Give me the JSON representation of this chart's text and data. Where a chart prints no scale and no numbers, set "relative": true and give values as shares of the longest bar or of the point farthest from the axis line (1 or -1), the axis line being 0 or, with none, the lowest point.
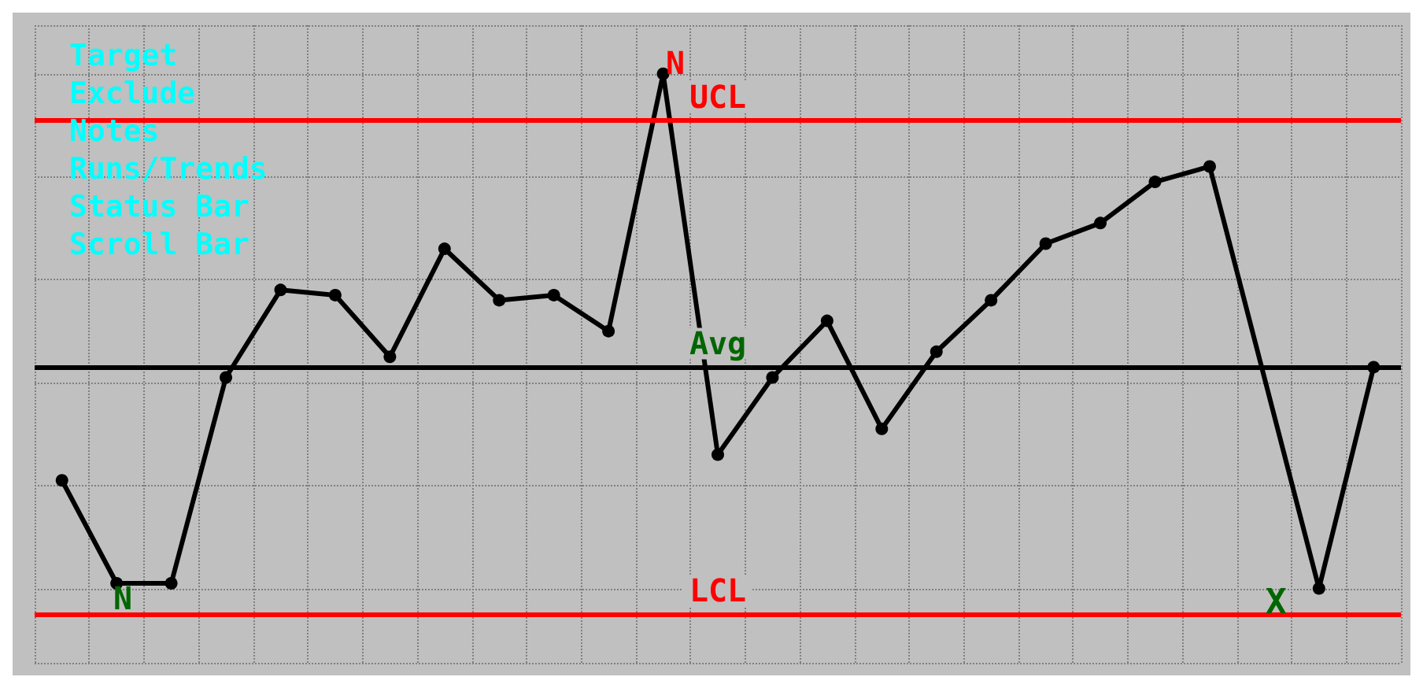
{
  "chart_data": {
    "type": "line",
    "relative": true,
    "categories": [
      null,
      null,
      null,
      null,
      null,
      null,
      null,
      null,
      null,
      null,
      null,
      null,
      null,
      null,
      null,
      null,
      null,
      null,
      null,
      null,
      null,
      null,
      null,
      null,
      null
    ],
    "series": [
      {
        "color": "#000000",
        "values": [
          0.21,
          0.01,
          0.01,
          0.41,
          0.58,
          0.57,
          0.45,
          0.66,
          0.56,
          0.57,
          0.5,
          1,
          0.26,
          0.41,
          0.52,
          0.31,
          0.46,
          0.56,
          0.67,
          0.71,
          0.79,
          0.82,
          null,
          0,
          0.43
        ]
      }
    ],
    "ref_lines": [
      {
        "axis": "y",
        "value": 0.91,
        "label": "UCL",
        "color": "#ff0000"
      },
      {
        "axis": "y",
        "value": 0.43,
        "label": "Avg",
        "color": "#000000"
      },
      {
        "axis": "y",
        "value": -0.05,
        "label": "LCL",
        "color": "#ff0000"
      }
    ],
    "annotations": [
      "Target",
      "Exclude",
      "Notes",
      "Runs/Trends",
      "Status Bar",
      "Scroll Bar",
      "X",
      "N",
      "N"
    ],
    "grid": true,
    "marker": "circle",
    "line_style": "solid"
  }
}
